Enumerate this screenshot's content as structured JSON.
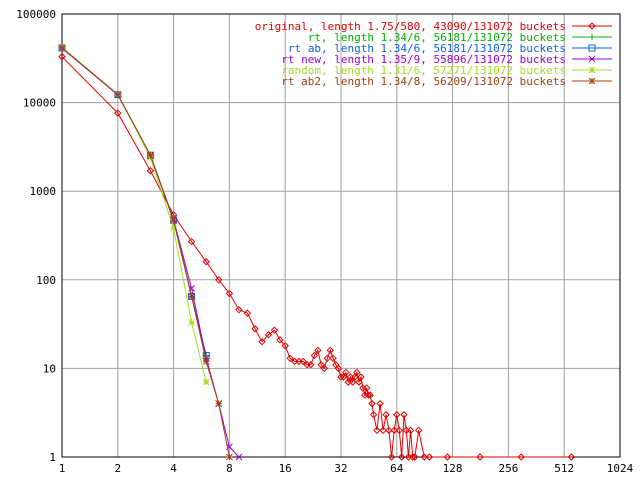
{
  "chart_data": {
    "type": "line",
    "xscale": "log2",
    "yscale": "log10",
    "xlim": [
      1,
      1024
    ],
    "ylim": [
      1,
      100000
    ],
    "grid": true,
    "legend_position": "top-right",
    "x_ticks": [
      "1",
      "2",
      "4",
      "8",
      "16",
      "32",
      "64",
      "128",
      "256",
      "512",
      "1024"
    ],
    "y_ticks": [
      "1",
      "10",
      "100",
      "1000",
      "10000",
      "100000"
    ],
    "series": [
      {
        "name": "original, length 1.75/580, 43090/131072 buckets",
        "color": "#e00000",
        "marker": "diamond",
        "x": [
          1,
          2,
          3,
          4,
          5,
          6,
          7,
          8,
          9,
          10,
          11,
          12,
          13,
          14,
          15,
          16,
          17,
          18,
          19,
          20,
          21,
          22,
          23,
          24,
          25,
          26,
          27,
          28,
          29,
          30,
          31,
          32,
          33,
          34,
          35,
          36,
          37,
          38,
          39,
          40,
          41,
          42,
          43,
          44,
          45,
          46,
          47,
          48,
          50,
          52,
          54,
          56,
          58,
          60,
          62,
          64,
          66,
          68,
          70,
          72,
          74,
          76,
          78,
          80,
          84,
          90,
          96,
          120,
          180,
          300,
          560
        ],
        "y": [
          33000,
          7600,
          1700,
          540,
          270,
          160,
          100,
          70,
          46,
          42,
          28,
          20,
          24,
          27,
          21,
          18,
          13,
          12,
          12,
          12,
          11,
          11,
          14,
          16,
          11,
          10,
          13,
          16,
          13,
          11,
          10,
          8,
          8,
          9,
          7,
          8,
          7,
          8,
          9,
          7,
          8,
          6,
          5,
          6,
          5,
          5,
          4,
          3,
          2,
          4,
          2,
          3,
          2,
          1,
          2,
          3,
          2,
          1,
          3,
          2,
          1,
          2,
          1,
          1,
          2,
          1,
          1,
          1,
          1,
          1,
          1
        ]
      },
      {
        "name": "rt, length 1.34/6, 56181/131072 buckets",
        "color": "#00b000",
        "marker": "plus",
        "x": [
          1,
          2,
          3,
          4,
          5,
          6
        ],
        "y": [
          41500,
          12300,
          2550,
          470,
          65,
          14
        ]
      },
      {
        "name": "rt ab, length 1.34/6, 56181/131072 buckets",
        "color": "#1060e0",
        "marker": "square",
        "x": [
          1,
          2,
          3,
          4,
          5,
          6
        ],
        "y": [
          41500,
          12300,
          2550,
          470,
          65,
          14
        ]
      },
      {
        "name": "rt new, length 1.35/9, 55896/131072 buckets",
        "color": "#a000d0",
        "marker": "x",
        "x": [
          1,
          2,
          3,
          4,
          5,
          6,
          7,
          8,
          9
        ],
        "y": [
          41000,
          12200,
          2500,
          480,
          80,
          13,
          4,
          1.3,
          1
        ]
      },
      {
        "name": "random, length 1.31/6, 57271/131072 buckets",
        "color": "#a0e020",
        "marker": "star",
        "x": [
          1,
          2,
          3,
          4,
          5,
          6
        ],
        "y": [
          42000,
          12400,
          2400,
          380,
          33,
          7
        ]
      },
      {
        "name": "rt ab2, length 1.34/8, 56209/131072 buckets",
        "color": "#a04010",
        "marker": "asterisk",
        "x": [
          1,
          2,
          3,
          4,
          5,
          6,
          7,
          8
        ],
        "y": [
          41500,
          12300,
          2550,
          470,
          65,
          12,
          4,
          1
        ]
      }
    ]
  }
}
